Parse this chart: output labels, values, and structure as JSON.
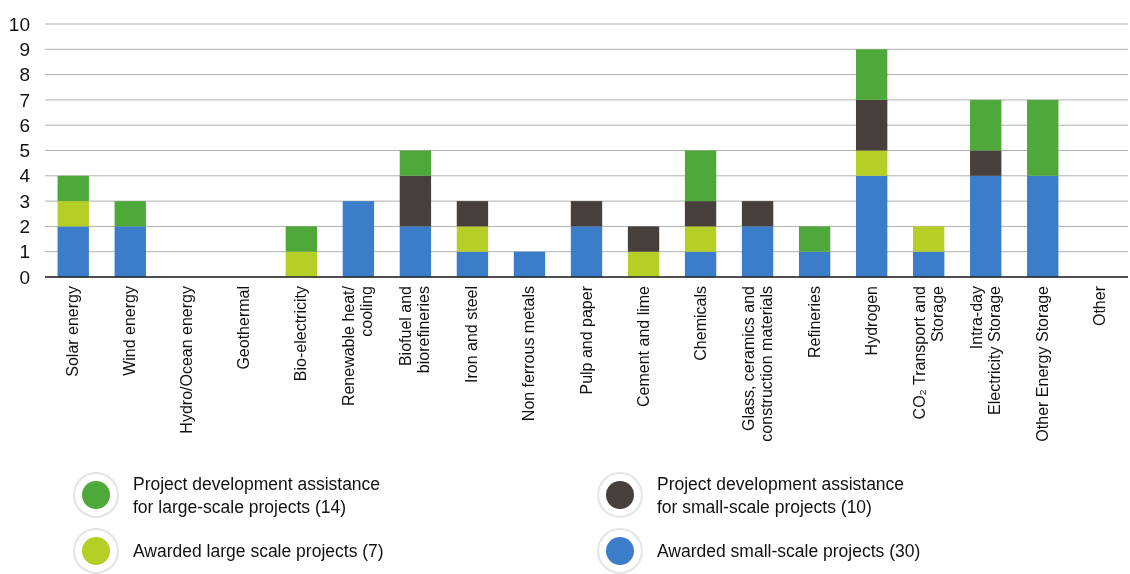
{
  "chart_data": {
    "type": "bar",
    "stacked": true,
    "categories": [
      "Solar energy",
      "Wind energy",
      "Hydro/Ocean energy",
      "Geothermal",
      "Bio-electricity",
      "Renewable heat/\ncooling",
      "Biofuel and\nbiorefineries",
      "Iron and steel",
      "Non ferrous metals",
      "Pulp and paper",
      "Cement and lime",
      "Chemicals",
      "Glass, ceramics and\nconstruction materials",
      "Refineries",
      "Hydrogen",
      "CO₂ Transport and\nStorage",
      "Intra-day\nElectricity Storage",
      "Other Energy Storage",
      "Other"
    ],
    "series": [
      {
        "name": "Awarded small-scale projects (30)",
        "color": "#3b7dc8",
        "values": [
          2,
          2,
          0,
          0,
          0,
          3,
          2,
          1,
          1,
          2,
          0,
          1,
          2,
          1,
          4,
          1,
          4,
          4,
          0
        ]
      },
      {
        "name": "Awarded large scale projects (7)",
        "color": "#b6cf27",
        "values": [
          1,
          0,
          0,
          0,
          1,
          0,
          0,
          1,
          0,
          0,
          1,
          1,
          0,
          0,
          1,
          1,
          0,
          0,
          0
        ]
      },
      {
        "name": "Project development assistance\nfor small-scale projects (10)",
        "color": "#473f3b",
        "values": [
          0,
          0,
          0,
          0,
          0,
          0,
          2,
          1,
          0,
          1,
          1,
          1,
          1,
          0,
          2,
          0,
          1,
          0,
          0
        ]
      },
      {
        "name": "Project development assistance\nfor large-scale projects (14)",
        "color": "#4fa83a",
        "values": [
          1,
          1,
          0,
          0,
          1,
          0,
          1,
          0,
          0,
          0,
          0,
          2,
          0,
          1,
          2,
          0,
          2,
          3,
          0
        ]
      }
    ],
    "ylim": [
      0,
      10
    ],
    "yticks": [
      0,
      1,
      2,
      3,
      4,
      5,
      6,
      7,
      8,
      9,
      10
    ],
    "grid": "y",
    "legend": "bottom"
  }
}
